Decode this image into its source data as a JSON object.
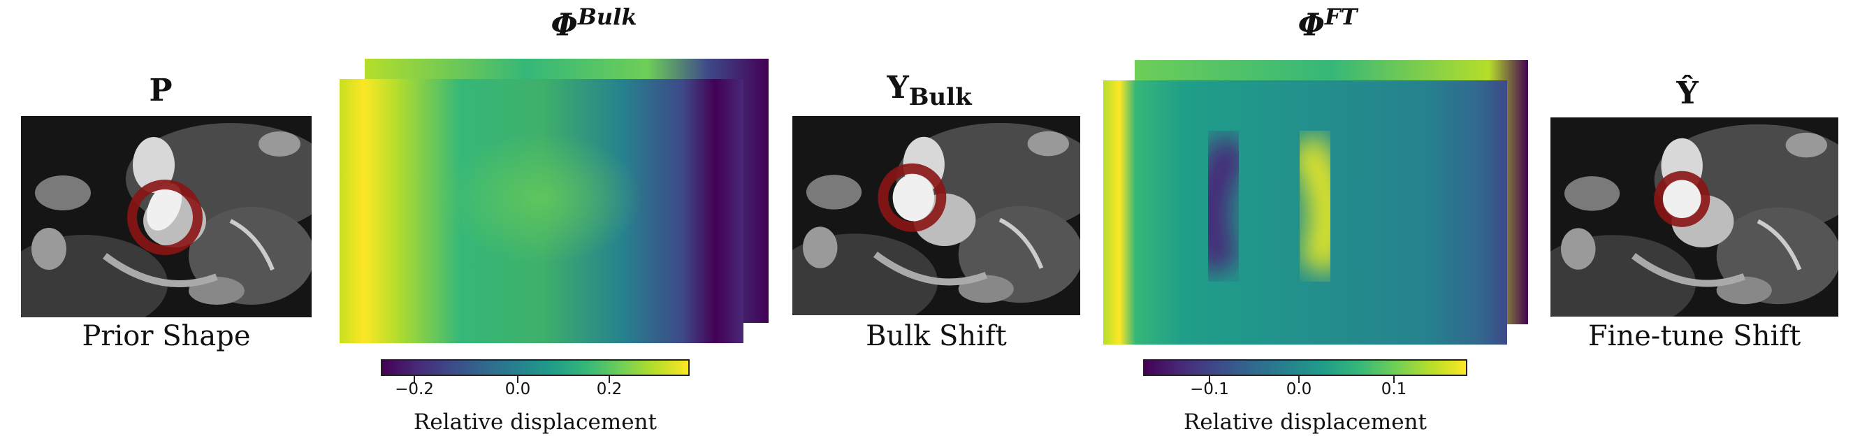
{
  "panels": {
    "prior": {
      "title": "P",
      "caption": "Prior Shape"
    },
    "bulk_field": {
      "title": "Φ",
      "title_sup": "Bulk"
    },
    "bulk": {
      "title": "Y",
      "title_sub": "Bulk",
      "caption": "Bulk Shift"
    },
    "ft_field": {
      "title": "Φ",
      "title_sup": "FT"
    },
    "final": {
      "title": "Ŷ",
      "caption": "Fine-tune Shift"
    }
  },
  "colorbars": [
    {
      "label": "Relative displacement",
      "ticks": [
        "−0.2",
        "0.0",
        "0.2"
      ]
    },
    {
      "label": "Relative displacement",
      "ticks": [
        "−0.1",
        "0.0",
        "0.1"
      ]
    }
  ],
  "colors": {
    "ring": "#8b1414",
    "colormap": "viridis"
  }
}
